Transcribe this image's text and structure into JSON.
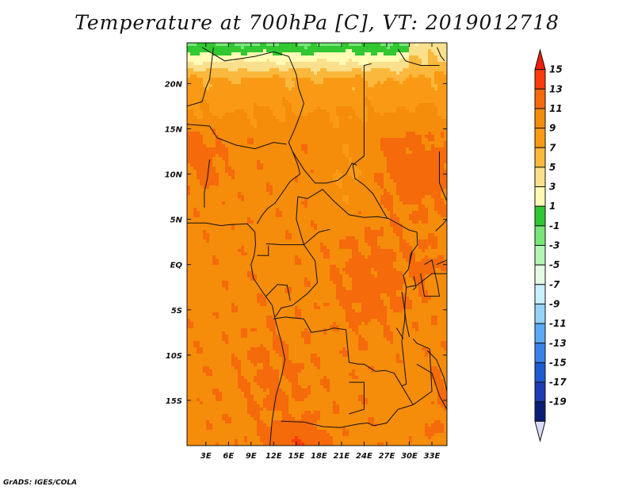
{
  "chart_data": {
    "type": "heatmap",
    "title": "Temperature at 700hPa [C], VT: 2019012718",
    "variable": "Temperature",
    "level": "700hPa",
    "units": "C",
    "valid_time": "2019012718",
    "x_ticks": [
      "3E",
      "6E",
      "9E",
      "12E",
      "15E",
      "18E",
      "21E",
      "24E",
      "27E",
      "30E",
      "33E"
    ],
    "x_tick_values": [
      3,
      6,
      9,
      12,
      15,
      18,
      21,
      24,
      27,
      30,
      33
    ],
    "y_ticks": [
      "20N",
      "15N",
      "10N",
      "5N",
      "EQ",
      "5S",
      "10S",
      "15S"
    ],
    "y_tick_values": [
      20,
      15,
      10,
      5,
      0,
      -5,
      -10,
      -15
    ],
    "xlim": [
      0.5,
      35
    ],
    "ylim": [
      -20,
      24.5
    ],
    "colorbar": {
      "labels": [
        "15",
        "13",
        "11",
        "9",
        "7",
        "5",
        "3",
        "1",
        "-1",
        "-3",
        "-5",
        "-7",
        "-9",
        "-11",
        "-13",
        "-15",
        "-17",
        "-19"
      ],
      "levels": [
        15,
        13,
        11,
        9,
        7,
        5,
        3,
        1,
        -1,
        -3,
        -5,
        -7,
        -9,
        -11,
        -13,
        -15,
        -17,
        -19
      ],
      "colors": [
        "#f01e0a",
        "#fa3c0a",
        "#f56a0a",
        "#f58c0a",
        "#fa9a14",
        "#fab83c",
        "#fae08c",
        "#fffab4",
        "#32c832",
        "#78e678",
        "#b4f5b4",
        "#e6fae6",
        "#c8f0ff",
        "#96d2fa",
        "#5aaaf5",
        "#3c82eb",
        "#1e5ad2",
        "#1e3cb4",
        "#0a1e78",
        "#dcdcfa"
      ]
    },
    "regions": [
      {
        "name": "northern-cool-band",
        "lat": [
          18,
          24.5
        ],
        "lon": [
          0.5,
          35
        ],
        "value_range": [
          5,
          7
        ]
      },
      {
        "name": "northern-green-band",
        "lat": [
          22,
          24.5
        ],
        "lon": [
          2,
          29
        ],
        "value_range": [
          1,
          3
        ]
      },
      {
        "name": "congo-basin-warm-core",
        "lat": [
          -8,
          5
        ],
        "lon": [
          19,
          30
        ],
        "value_range": [
          11,
          13
        ]
      },
      {
        "name": "southern-hot-spot",
        "lat": [
          -20,
          -17
        ],
        "lon": [
          11,
          19
        ],
        "value_range": [
          13,
          15
        ]
      },
      {
        "name": "east-sudan-warm",
        "lat": [
          5,
          17
        ],
        "lon": [
          22,
          35
        ],
        "value_range": [
          11,
          13
        ]
      }
    ]
  },
  "footer": {
    "credit": "GrADS: IGES/COLA"
  }
}
